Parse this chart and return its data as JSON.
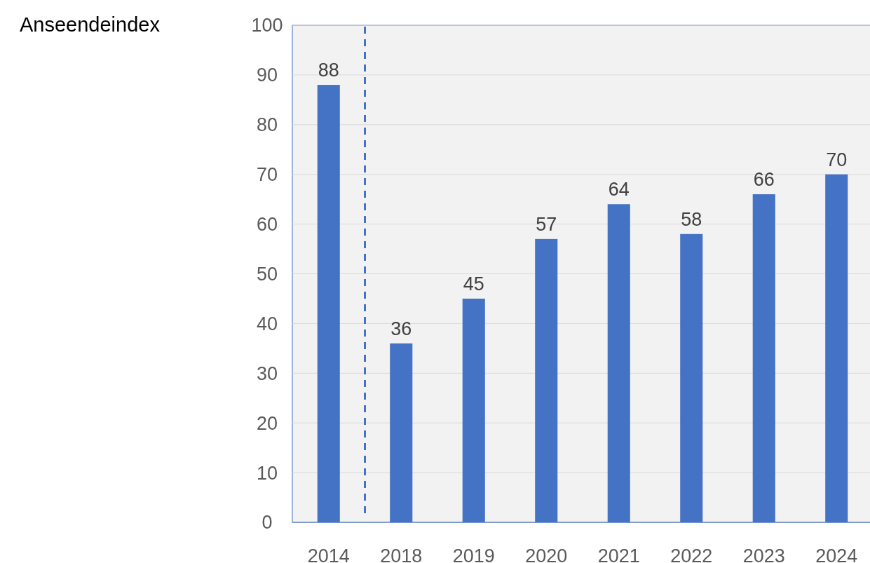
{
  "chart_data": {
    "type": "bar",
    "ylabel": "Anseendeindex",
    "categories": [
      "2014",
      "2018",
      "2019",
      "2020",
      "2021",
      "2022",
      "2023",
      "2024"
    ],
    "values": [
      88,
      36,
      45,
      57,
      64,
      58,
      66,
      70
    ],
    "color": "#4472c4",
    "ylim": [
      0,
      100
    ],
    "yticks": [
      0,
      10,
      20,
      30,
      40,
      50,
      60,
      70,
      80,
      90,
      100
    ],
    "grid": "y",
    "data_labels": true
  }
}
